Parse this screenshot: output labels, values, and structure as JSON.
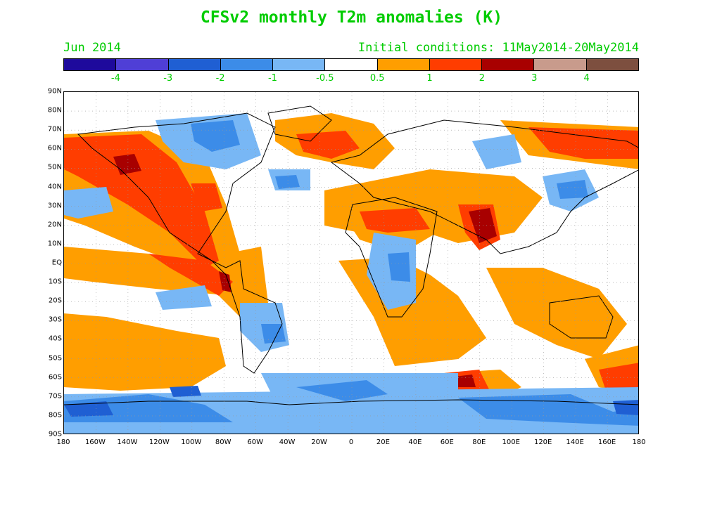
{
  "title": "CFSv2 monthly T2m anomalies (K)",
  "subtitle_left": "Jun 2014",
  "subtitle_right": "Initial conditions: 11May2014-20May2014",
  "label_color": "#00cc00",
  "colorbar": {
    "colors": [
      "#1e0a9c",
      "#4f3fd6",
      "#1f5fd3",
      "#3c8ce8",
      "#78b7f5",
      "#ffffff",
      "#ff9e00",
      "#ff3d00",
      "#a80000",
      "#c89b8c",
      "#7d4f3f"
    ],
    "labels": [
      "-4",
      "-3",
      "-2",
      "-1",
      "-0.5",
      "0.5",
      "1",
      "2",
      "3",
      "4"
    ]
  },
  "lat_labels": [
    "90N",
    "80N",
    "70N",
    "60N",
    "50N",
    "40N",
    "30N",
    "20N",
    "10N",
    "EQ",
    "10S",
    "20S",
    "30S",
    "40S",
    "50S",
    "60S",
    "70S",
    "80S",
    "90S"
  ],
  "lon_labels": [
    "180",
    "160W",
    "140W",
    "120W",
    "100W",
    "80W",
    "60W",
    "40W",
    "20W",
    "0",
    "20E",
    "40E",
    "60E",
    "80E",
    "100E",
    "120E",
    "140E",
    "160E",
    "180"
  ]
}
